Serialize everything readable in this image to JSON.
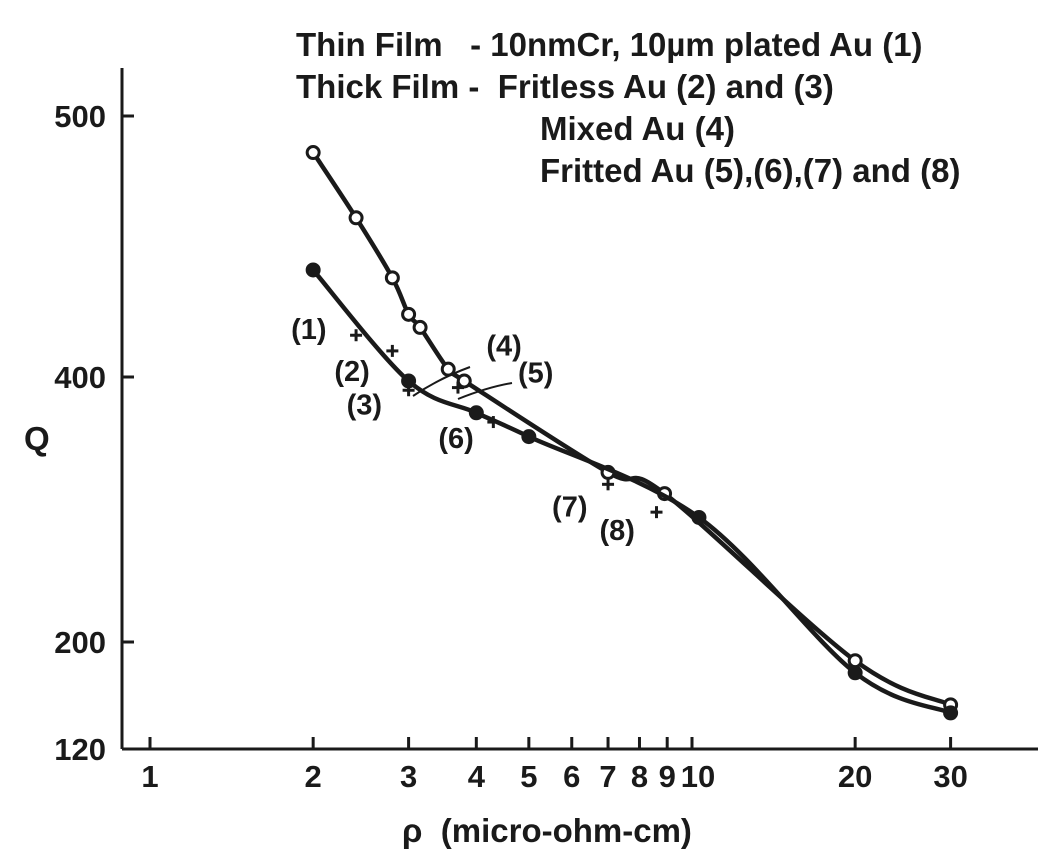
{
  "chart_data": {
    "type": "line",
    "title": "",
    "legend_lines": [
      "Thin Film   - 10nmCr, 10µm plated Au (1)",
      "Thick Film -  Fritless Au (2) and (3)",
      "Mixed Au (4)",
      "Fritted Au (5),(6),(7) and (8)"
    ],
    "xlabel": "ρ  (micro-ohm-cm)",
    "ylabel": "Q",
    "x_scale": "log",
    "xlim": [
      1,
      40
    ],
    "ylim": [
      120,
      530
    ],
    "x_ticks": [
      1,
      2,
      3,
      4,
      5,
      6,
      7,
      8,
      9,
      10,
      20,
      30
    ],
    "x_tick_labels": [
      "1",
      "2",
      "3",
      "4",
      "5",
      "6",
      "7",
      "8",
      "9",
      "10",
      "20",
      "30"
    ],
    "y_ticks": [
      120,
      200,
      400,
      500
    ],
    "y_tick_labels": [
      "120",
      "200",
      "400",
      "500"
    ],
    "grid": false,
    "series": [
      {
        "marker": "open-circle",
        "x": [
          2,
          2.4,
          2.8,
          3.0,
          3.15,
          3.55,
          3.8,
          7.0,
          8.9,
          20,
          30
        ],
        "y": [
          486,
          461,
          438,
          424,
          419,
          403,
          397,
          328,
          312,
          186,
          153
        ]
      },
      {
        "marker": "filled-circle",
        "x": [
          2,
          3.0,
          4.0,
          5.0,
          10.3,
          20,
          30
        ],
        "y": [
          441,
          397,
          373,
          355,
          294,
          177,
          147
        ]
      }
    ],
    "points": [
      {
        "label": "(1)",
        "x": 2.4,
        "y": 416
      },
      {
        "label": "(2)",
        "x": 2.8,
        "y": 410
      },
      {
        "label": "(3)",
        "x": 3.0,
        "y": 390
      },
      {
        "label": "(4)",
        "x": 3.1,
        "y": 392
      },
      {
        "label": "(5)",
        "x": 3.7,
        "y": 392
      },
      {
        "label": "(6)",
        "x": 4.3,
        "y": 366
      },
      {
        "label": "(7)",
        "x": 7.0,
        "y": 319
      },
      {
        "label": "(8)",
        "x": 8.6,
        "y": 298
      }
    ]
  }
}
